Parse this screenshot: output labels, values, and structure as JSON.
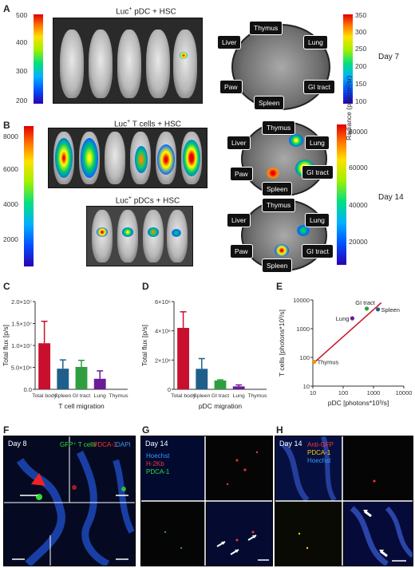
{
  "panels": {
    "A": {
      "letter": "A",
      "title_html_parts": [
        "Luc",
        "+",
        " pDC + HSC"
      ],
      "day": "Day 7",
      "left_bar_ticks": [
        "500",
        "400",
        "300",
        "200"
      ],
      "right_bar_ticks": [
        "350",
        "300",
        "250",
        "200",
        "150",
        "100"
      ],
      "right_bar_label": "Radiance (p/s/cm²/sr)"
    },
    "B": {
      "letter": "B",
      "title_top_parts": [
        "Luc",
        "+",
        " T cells + HSC"
      ],
      "title_bottom_parts": [
        "Luc",
        "+",
        " pDCs + HSC"
      ],
      "day": "Day 14",
      "left_bar_ticks": [
        "8000",
        "6000",
        "4000",
        "2000"
      ],
      "right_bar_ticks": [
        "80000",
        "60000",
        "40000",
        "20000"
      ]
    },
    "organs": [
      "Thymus",
      "Liver",
      "Lung",
      "Paw",
      "GI tract",
      "Spleen"
    ]
  },
  "chart_data": [
    {
      "panel": "C",
      "type": "bar",
      "title": "",
      "xlabel": "T cell migration",
      "ylabel": "Total flux [p/s]",
      "categories": [
        "Total body",
        "Spleen",
        "GI tract",
        "Lung",
        "Thymus"
      ],
      "values": [
        10500000,
        4700000,
        5100000,
        2400000,
        0
      ],
      "errors": [
        5000000,
        2000000,
        1500000,
        1800000,
        0
      ],
      "colors": [
        "#c8102e",
        "#1f5f8b",
        "#2f9e41",
        "#6a1b9a",
        "#999999"
      ],
      "ylim": [
        0,
        20000000
      ],
      "yticks": [
        "0.0",
        "5.0×10⁶",
        "1.0×10⁷",
        "1.5×10⁷",
        "2.0×10⁷"
      ]
    },
    {
      "panel": "D",
      "type": "bar",
      "title": "",
      "xlabel": "pDC migration",
      "ylabel": "Total flux [p/s]",
      "categories": [
        "Total body",
        "Spleen",
        "GI tract",
        "Lung",
        "Thymus"
      ],
      "values": [
        4200000,
        1400000,
        600000,
        200000,
        0
      ],
      "errors": [
        1100000,
        700000,
        50000,
        100000,
        0
      ],
      "colors": [
        "#c8102e",
        "#1f5f8b",
        "#2f9e41",
        "#6a1b9a",
        "#999999"
      ],
      "ylim": [
        0,
        6000000
      ],
      "yticks": [
        "0",
        "2×10⁶",
        "4×10⁶",
        "6×10⁶"
      ]
    },
    {
      "panel": "E",
      "type": "scatter",
      "title": "",
      "xlabel": "pDC [photons*10³/s]",
      "ylabel": "T cells [photons*10³/s]",
      "xscale": "log",
      "yscale": "log",
      "xlim": [
        10,
        10000
      ],
      "ylim": [
        10,
        10000
      ],
      "xticks": [
        "10",
        "100",
        "1000",
        "10000"
      ],
      "yticks": [
        "10",
        "100",
        "1000",
        "10000"
      ],
      "points": [
        {
          "label": "Thymus",
          "x": 11,
          "y": 70,
          "color": "#e69500"
        },
        {
          "label": "Lung",
          "x": 200,
          "y": 2300,
          "color": "#6a1b9a"
        },
        {
          "label": "GI tract",
          "x": 600,
          "y": 5000,
          "color": "#2f9e41"
        },
        {
          "label": "Spleen",
          "x": 1400,
          "y": 4700,
          "color": "#1f5f8b"
        }
      ],
      "fit_line": {
        "x": [
          10,
          1800
        ],
        "y": [
          60,
          8000
        ],
        "color": "#c8102e"
      }
    }
  ],
  "micro": {
    "F": {
      "letter": "F",
      "day": "Day 8",
      "legend": [
        {
          "text": "GFP⁺ T cells",
          "color": "#33dd33"
        },
        {
          "text": "PDCA-1",
          "color": "#ff3333"
        },
        {
          "text": "DAPI",
          "color": "#3399ff"
        }
      ]
    },
    "G": {
      "letter": "G",
      "day": "Day 14",
      "legend": [
        {
          "text": "Hoechst",
          "color": "#3399ff"
        },
        {
          "text": "H-2Kb",
          "color": "#ff3333"
        },
        {
          "text": "PDCA-1",
          "color": "#33dd33"
        }
      ]
    },
    "H": {
      "letter": "H",
      "day": "Day 14",
      "legend": [
        {
          "text": "Anti-GFP",
          "color": "#ff3333"
        },
        {
          "text": "PDCA-1",
          "color": "#ffcc00"
        },
        {
          "text": "Hoechst",
          "color": "#3399ff"
        }
      ]
    }
  }
}
